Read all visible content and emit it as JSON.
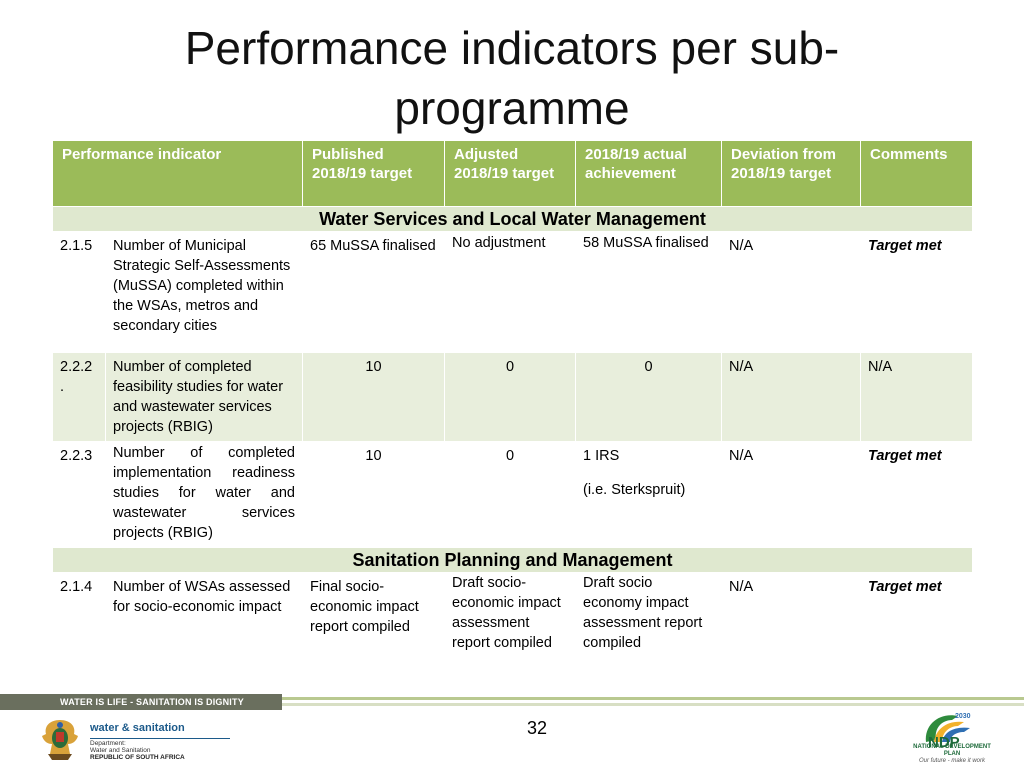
{
  "title_line1": "Performance indicators per sub-",
  "title_line2": "programme",
  "headers": {
    "indicator": "Performance indicator",
    "published": "Published 2018/19 target",
    "adjusted": "Adjusted 2018/19 target",
    "actual": "2018/19 actual achievement",
    "deviation": "Deviation from 2018/19 target",
    "comments": "Comments"
  },
  "sections": [
    {
      "title": "Water Services and Local Water Management",
      "rows": [
        {
          "code": "2.1.5",
          "indicator": "Number of Municipal Strategic Self-Assessments (MuSSA) completed within the WSAs, metros and secondary cities",
          "published": "65 MuSSA finalised",
          "adjusted": "No adjustment",
          "actual": "58 MuSSA finalised",
          "deviation": "N/A",
          "comments": "Target met"
        },
        {
          "code": "2.2.2",
          "code_suffix": ".",
          "indicator": "Number of completed feasibility studies for water and wastewater services projects (RBIG)",
          "published": "10",
          "adjusted": "0",
          "actual": "0",
          "deviation": "N/A",
          "comments": "N/A"
        },
        {
          "code": "2.2.3",
          "indicator": "Number of completed implementation readiness studies for water and wastewater services projects (RBIG)",
          "published": "10",
          "adjusted": "0",
          "actual": "1 IRS",
          "actual_note": "(i.e. Sterkspruit)",
          "deviation": "N/A",
          "comments": "Target met"
        }
      ]
    },
    {
      "title": "Sanitation Planning and Management",
      "rows": [
        {
          "code": "2.1.4",
          "indicator": "Number of WSAs assessed for socio-economic impact",
          "published": "Final socio-economic impact report compiled",
          "adjusted": "Draft socio-economic impact assessment report compiled",
          "actual": "Draft socio economy impact assessment report compiled",
          "deviation": "N/A",
          "comments": "Target met"
        }
      ]
    }
  ],
  "footer": {
    "band_text": "WATER IS LIFE - SANITATION IS DIGNITY",
    "page_number": "32",
    "dept_name": "water & sanitation",
    "dept_line1": "Department:",
    "dept_line2": "Water and Sanitation",
    "dept_line3": "REPUBLIC OF SOUTH AFRICA",
    "ndp_year": "2030",
    "ndp_abbr": "NDP",
    "ndp_name": "NATIONAL DEVELOPMENT PLAN",
    "ndp_tagline": "Our future - make it work"
  },
  "colors": {
    "header_green": "#9bbb59",
    "section_bg": "#dfe8cf",
    "alt_row": "#e8eedc"
  }
}
